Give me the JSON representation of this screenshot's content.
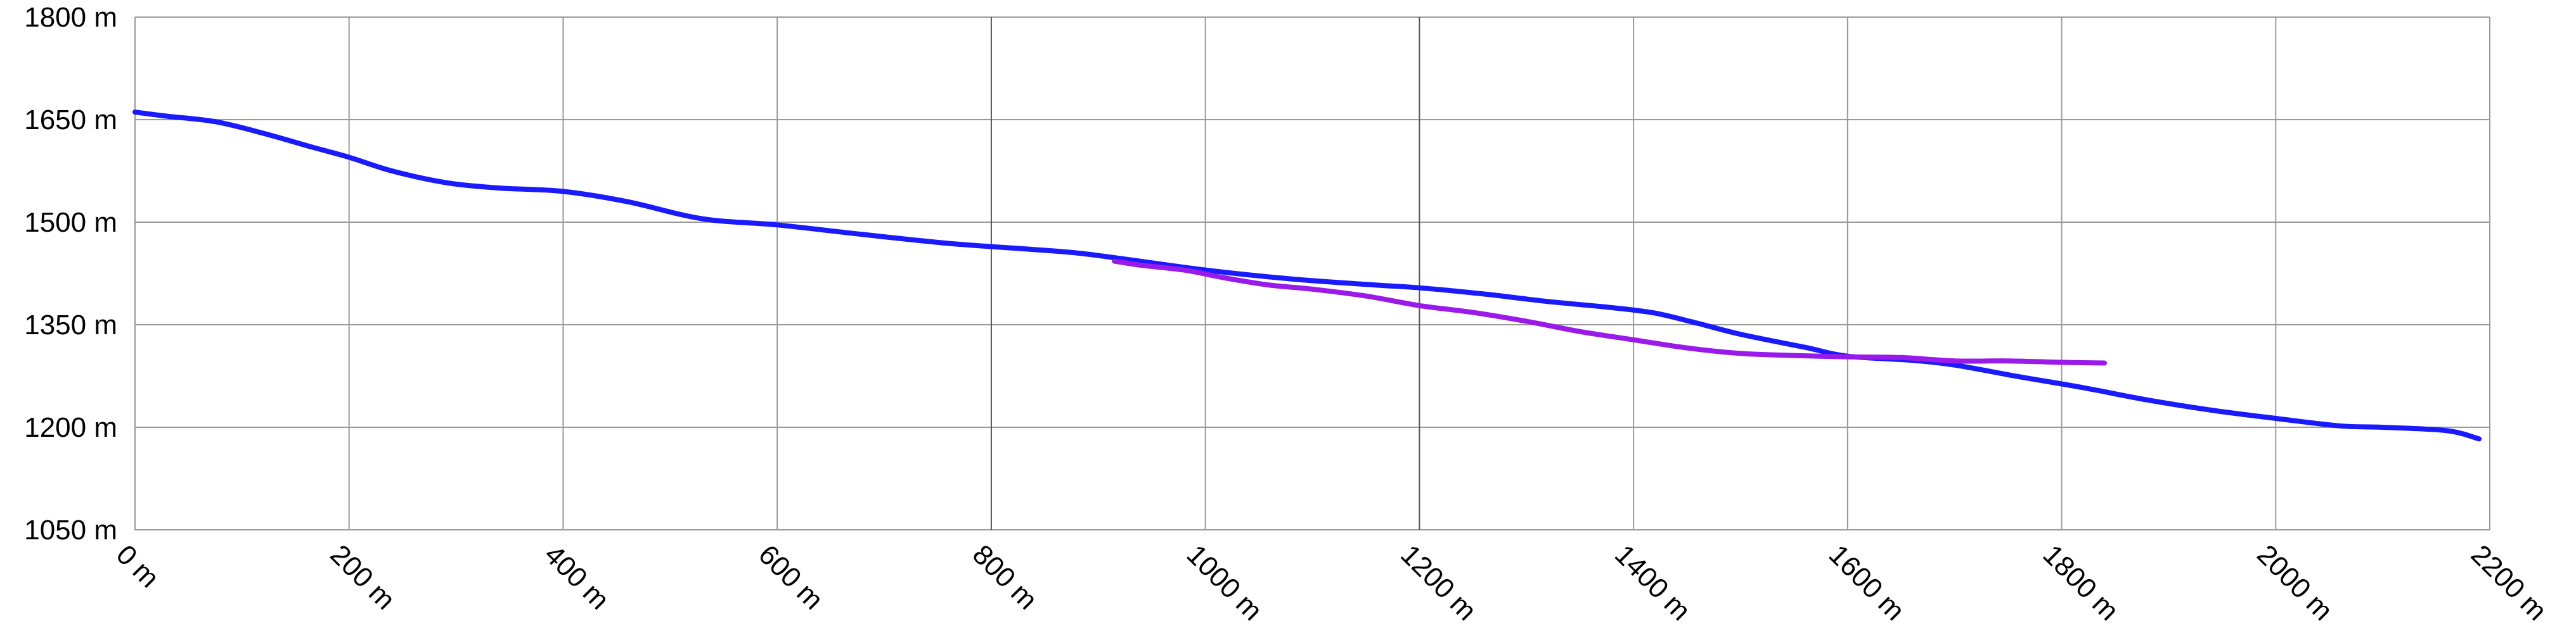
{
  "chart_data": {
    "type": "line",
    "title": "",
    "xlabel": "",
    "ylabel": "",
    "xlim": [
      0,
      2200
    ],
    "ylim": [
      1050,
      1800
    ],
    "x_unit": "m",
    "y_unit": "m",
    "xticks": [
      0,
      200,
      400,
      600,
      800,
      1000,
      1200,
      1400,
      1600,
      1800,
      2000,
      2200
    ],
    "yticks": [
      1050,
      1200,
      1350,
      1500,
      1650,
      1800
    ],
    "xtick_labels": [
      "0 m",
      "200 m",
      "400 m",
      "600 m",
      "800 m",
      "1000 m",
      "1200 m",
      "1400 m",
      "1600 m",
      "1800 m",
      "2000 m",
      "2200 m"
    ],
    "ytick_labels": [
      "1050 m",
      "1200 m",
      "1350 m",
      "1500 m",
      "1650 m",
      "1800 m"
    ],
    "grid": true,
    "legend": "none",
    "series": [
      {
        "color": "#1a1aff",
        "x": [
          0,
          30,
          75,
          120,
          165,
          200,
          240,
          290,
          340,
          400,
          460,
          530,
          600,
          680,
          760,
          840,
          880,
          920,
          1000,
          1080,
          1160,
          1200,
          1260,
          1320,
          1380,
          1420,
          1460,
          1500,
          1560,
          1600,
          1660,
          1700,
          1760,
          1820,
          1880,
          1940,
          2000,
          2060,
          2100,
          2160,
          2190
        ],
        "y": [
          1661,
          1655,
          1647,
          1630,
          1610,
          1595,
          1575,
          1558,
          1550,
          1545,
          1530,
          1505,
          1496,
          1482,
          1469,
          1460,
          1455,
          1447,
          1430,
          1417,
          1408,
          1404,
          1395,
          1384,
          1375,
          1367,
          1352,
          1336,
          1317,
          1304,
          1298,
          1291,
          1274,
          1258,
          1240,
          1225,
          1213,
          1202,
          1200,
          1195,
          1183
        ]
      },
      {
        "color": "#9a1aea",
        "x": [
          915,
          940,
          980,
          1020,
          1060,
          1100,
          1150,
          1200,
          1250,
          1300,
          1350,
          1400,
          1450,
          1500,
          1550,
          1600,
          1650,
          1700,
          1750,
          1800,
          1840
        ],
        "y": [
          1443,
          1437,
          1430,
          1418,
          1408,
          1402,
          1392,
          1378,
          1368,
          1355,
          1340,
          1328,
          1316,
          1308,
          1305,
          1303,
          1302,
          1297,
          1297,
          1295,
          1294
        ]
      }
    ]
  }
}
